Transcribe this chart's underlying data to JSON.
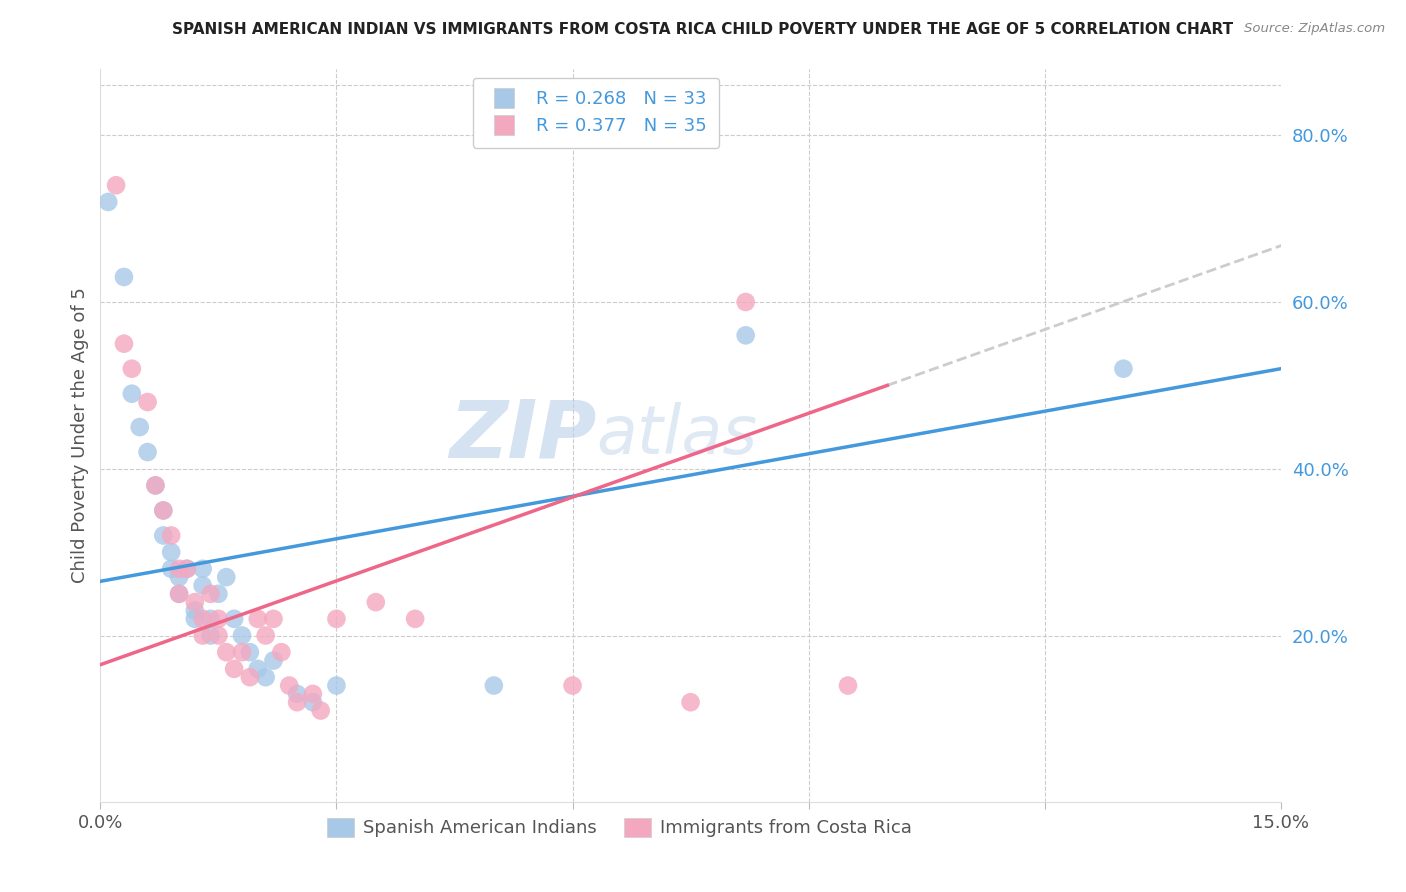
{
  "title": "SPANISH AMERICAN INDIAN VS IMMIGRANTS FROM COSTA RICA CHILD POVERTY UNDER THE AGE OF 5 CORRELATION CHART",
  "source": "Source: ZipAtlas.com",
  "ylabel": "Child Poverty Under the Age of 5",
  "y_ticks_right": [
    0.2,
    0.4,
    0.6,
    0.8
  ],
  "y_tick_labels_right": [
    "20.0%",
    "40.0%",
    "60.0%",
    "80.0%"
  ],
  "xlim": [
    0.0,
    0.15
  ],
  "ylim": [
    0.0,
    0.88
  ],
  "blue_R": 0.268,
  "blue_N": 33,
  "pink_R": 0.377,
  "pink_N": 35,
  "blue_color": "#a8c8e8",
  "pink_color": "#f4a8c0",
  "blue_line_color": "#4499dd",
  "pink_line_color": "#ee6688",
  "dashed_line_color": "#cccccc",
  "watermark_zip": "ZIP",
  "watermark_atlas": "atlas",
  "legend_label_blue": "Spanish American Indians",
  "legend_label_pink": "Immigrants from Costa Rica",
  "blue_x": [
    0.001,
    0.003,
    0.004,
    0.005,
    0.006,
    0.007,
    0.008,
    0.008,
    0.009,
    0.009,
    0.01,
    0.01,
    0.011,
    0.012,
    0.012,
    0.013,
    0.013,
    0.014,
    0.014,
    0.015,
    0.016,
    0.017,
    0.018,
    0.019,
    0.02,
    0.021,
    0.022,
    0.025,
    0.027,
    0.03,
    0.05,
    0.082,
    0.13
  ],
  "blue_y": [
    0.72,
    0.63,
    0.49,
    0.45,
    0.42,
    0.38,
    0.35,
    0.32,
    0.3,
    0.28,
    0.27,
    0.25,
    0.28,
    0.23,
    0.22,
    0.28,
    0.26,
    0.22,
    0.2,
    0.25,
    0.27,
    0.22,
    0.2,
    0.18,
    0.16,
    0.15,
    0.17,
    0.13,
    0.12,
    0.14,
    0.14,
    0.56,
    0.52
  ],
  "pink_x": [
    0.002,
    0.003,
    0.004,
    0.006,
    0.007,
    0.008,
    0.009,
    0.01,
    0.01,
    0.011,
    0.012,
    0.013,
    0.013,
    0.014,
    0.015,
    0.015,
    0.016,
    0.017,
    0.018,
    0.019,
    0.02,
    0.021,
    0.022,
    0.023,
    0.024,
    0.025,
    0.027,
    0.028,
    0.03,
    0.035,
    0.04,
    0.06,
    0.075,
    0.082,
    0.095
  ],
  "pink_y": [
    0.74,
    0.55,
    0.52,
    0.48,
    0.38,
    0.35,
    0.32,
    0.28,
    0.25,
    0.28,
    0.24,
    0.22,
    0.2,
    0.25,
    0.22,
    0.2,
    0.18,
    0.16,
    0.18,
    0.15,
    0.22,
    0.2,
    0.22,
    0.18,
    0.14,
    0.12,
    0.13,
    0.11,
    0.22,
    0.24,
    0.22,
    0.14,
    0.12,
    0.6,
    0.14
  ],
  "grid_color": "#cccccc",
  "background_color": "#ffffff",
  "plot_background": "#ffffff"
}
